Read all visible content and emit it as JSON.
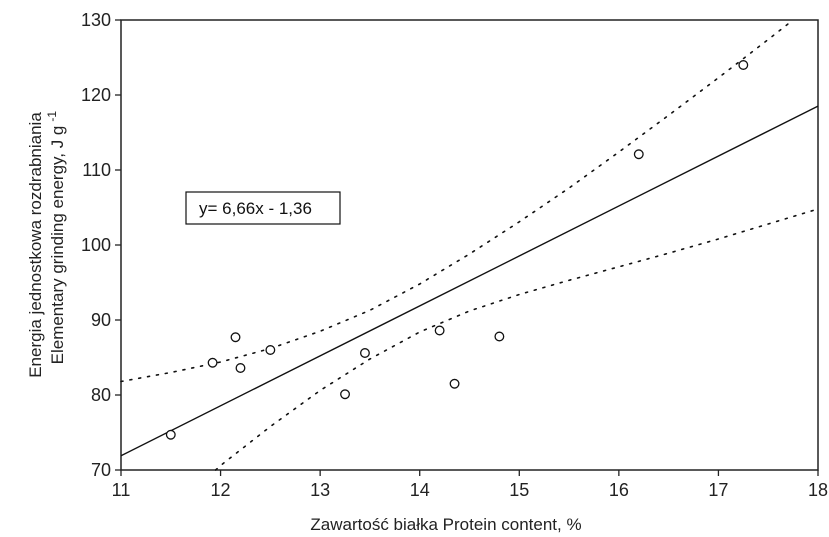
{
  "chart_data": {
    "type": "scatter",
    "xlabel": "Zawartość białka  Protein content, %",
    "ylabel_lines": [
      "Energia jednostkowa rozdrabniania",
      "Elementary grinding energy, J g"
    ],
    "ylabel_superscript": "-1",
    "xlim": [
      11,
      18
    ],
    "ylim": [
      70,
      130
    ],
    "xticks": [
      "11",
      "12",
      "13",
      "14",
      "15",
      "16",
      "17",
      "18"
    ],
    "yticks": [
      "70",
      "80",
      "90",
      "100",
      "110",
      "120",
      "130"
    ],
    "grid": false,
    "points": [
      {
        "x": 11.5,
        "y": 74.7
      },
      {
        "x": 11.92,
        "y": 84.3
      },
      {
        "x": 12.15,
        "y": 87.7
      },
      {
        "x": 12.2,
        "y": 83.6
      },
      {
        "x": 12.5,
        "y": 86.0
      },
      {
        "x": 13.25,
        "y": 80.1
      },
      {
        "x": 13.45,
        "y": 85.6
      },
      {
        "x": 14.2,
        "y": 88.6
      },
      {
        "x": 14.35,
        "y": 81.5
      },
      {
        "x": 14.8,
        "y": 87.8
      },
      {
        "x": 16.2,
        "y": 112.1
      },
      {
        "x": 17.25,
        "y": 124.0
      }
    ],
    "regression": {
      "equation": "y= 6,66x - 1,36",
      "slope": 6.66,
      "intercept": -1.36,
      "x_range": [
        11,
        18
      ]
    },
    "confidence_band": {
      "upper": [
        {
          "x": 11,
          "y": 81.8
        },
        {
          "x": 11.5,
          "y": 83.0
        },
        {
          "x": 12,
          "y": 84.4
        },
        {
          "x": 12.5,
          "y": 86.2
        },
        {
          "x": 13,
          "y": 88.5
        },
        {
          "x": 13.5,
          "y": 91.3
        },
        {
          "x": 14,
          "y": 94.8
        },
        {
          "x": 14.5,
          "y": 98.8
        },
        {
          "x": 15,
          "y": 103.1
        },
        {
          "x": 15.5,
          "y": 107.6
        },
        {
          "x": 16,
          "y": 112.4
        },
        {
          "x": 16.5,
          "y": 117.3
        },
        {
          "x": 17,
          "y": 122.3
        },
        {
          "x": 17.5,
          "y": 127.4
        },
        {
          "x": 17.75,
          "y": 130.0
        }
      ],
      "lower": [
        {
          "x": 11.95,
          "y": 70.0
        },
        {
          "x": 12,
          "y": 70.6
        },
        {
          "x": 12.5,
          "y": 75.8
        },
        {
          "x": 13,
          "y": 80.6
        },
        {
          "x": 13.5,
          "y": 84.8
        },
        {
          "x": 14,
          "y": 88.4
        },
        {
          "x": 14.5,
          "y": 91.2
        },
        {
          "x": 15,
          "y": 93.4
        },
        {
          "x": 15.5,
          "y": 95.3
        },
        {
          "x": 16,
          "y": 97.1
        },
        {
          "x": 16.5,
          "y": 98.9
        },
        {
          "x": 17,
          "y": 100.8
        },
        {
          "x": 17.5,
          "y": 102.8
        },
        {
          "x": 18,
          "y": 104.8
        }
      ]
    }
  }
}
